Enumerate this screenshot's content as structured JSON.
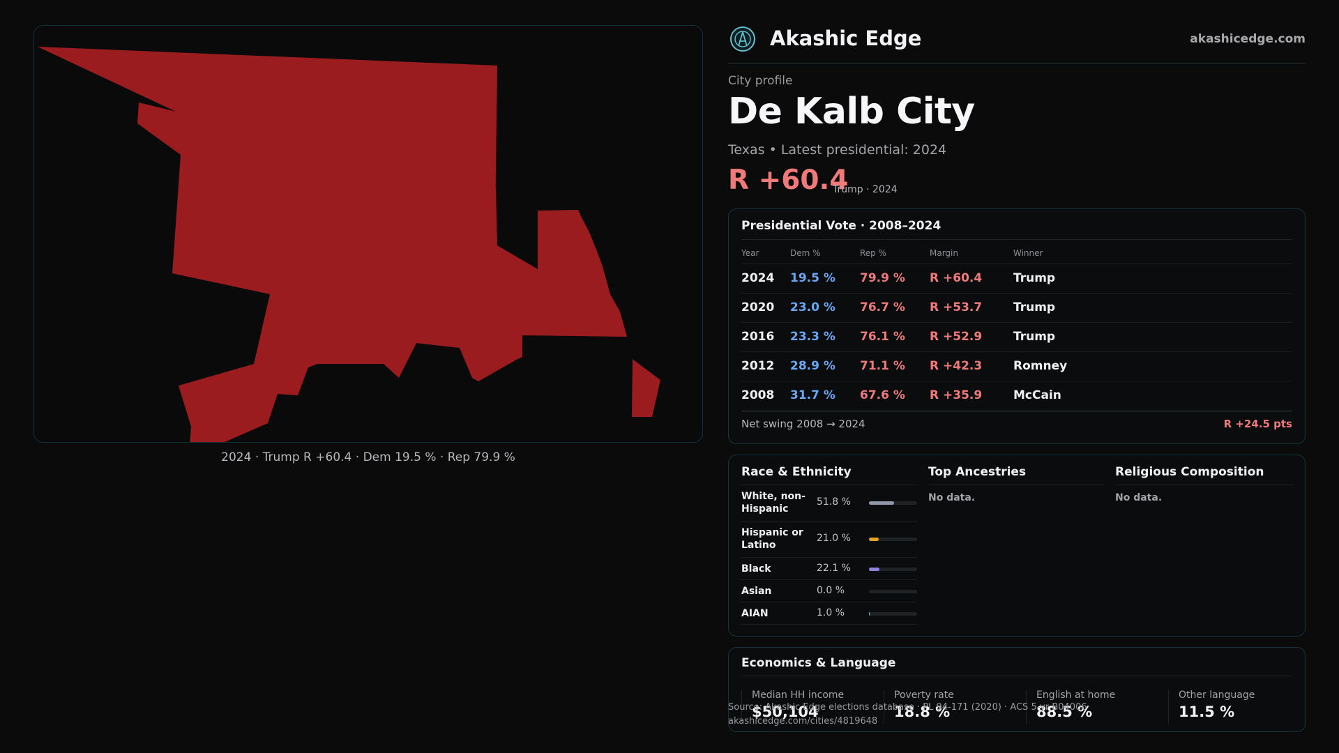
{
  "brand": {
    "name": "Akashic Edge",
    "url": "akashicedge.com"
  },
  "profile": {
    "kicker": "City profile",
    "city": "De Kalb City",
    "state": "Texas",
    "latest": "• Latest presidential: 2024",
    "margin_big": "R +60.4",
    "margin_note": "Trump · 2024"
  },
  "map": {
    "caption": "2024 · Trump R +60.4 · Dem 19.5 % · Rep 79.9 %",
    "fill_color": "#9b1c1f"
  },
  "votes": {
    "title": "Presidential Vote · 2008–2024",
    "headers": {
      "year": "Year",
      "dem": "Dem %",
      "rep": "Rep %",
      "margin": "Margin",
      "winner": "Winner"
    },
    "rows": [
      {
        "year": "2024",
        "dem": "19.5 %",
        "rep": "79.9 %",
        "margin": "R +60.4",
        "winner": "Trump"
      },
      {
        "year": "2020",
        "dem": "23.0 %",
        "rep": "76.7 %",
        "margin": "R +53.7",
        "winner": "Trump"
      },
      {
        "year": "2016",
        "dem": "23.3 %",
        "rep": "76.1 %",
        "margin": "R +52.9",
        "winner": "Trump"
      },
      {
        "year": "2012",
        "dem": "28.9 %",
        "rep": "71.1 %",
        "margin": "R +42.3",
        "winner": "Romney"
      },
      {
        "year": "2008",
        "dem": "31.7 %",
        "rep": "67.6 %",
        "margin": "R +35.9",
        "winner": "McCain"
      }
    ],
    "swing_label": "Net swing 2008 → 2024",
    "swing_value": "R +24.5 pts"
  },
  "race": {
    "title": "Race & Ethnicity",
    "rows": [
      {
        "label": "White, non-Hispanic",
        "pct": "51.8 %",
        "value": 51.8,
        "color": "#8e98a8"
      },
      {
        "label": "Hispanic or Latino",
        "pct": "21.0 %",
        "value": 21.0,
        "color": "#e0a22a"
      },
      {
        "label": "Black",
        "pct": "22.1 %",
        "value": 22.1,
        "color": "#8e84e0"
      },
      {
        "label": "Asian",
        "pct": "0.0 %",
        "value": 0.0,
        "color": "#5fc2cf"
      },
      {
        "label": "AIAN",
        "pct": "1.0 %",
        "value": 1.0,
        "color": "#5fc2cf"
      }
    ]
  },
  "ancestries": {
    "title": "Top Ancestries",
    "empty": "No data."
  },
  "religion": {
    "title": "Religious Composition",
    "empty": "No data."
  },
  "economics": {
    "title": "Economics & Language",
    "stats": [
      {
        "label": "Median HH income",
        "value": "$50,104"
      },
      {
        "label": "Poverty rate",
        "value": "18.8 %"
      },
      {
        "label": "English at home",
        "value": "88.5 %"
      },
      {
        "label": "Other language",
        "value": "11.5 %"
      }
    ]
  },
  "source": {
    "line1": "Source: Akashic Edge elections database · PL 94-171 (2020) · ACS 5-yr B04006",
    "line2": "akashicedge.com/cities/4819648"
  }
}
